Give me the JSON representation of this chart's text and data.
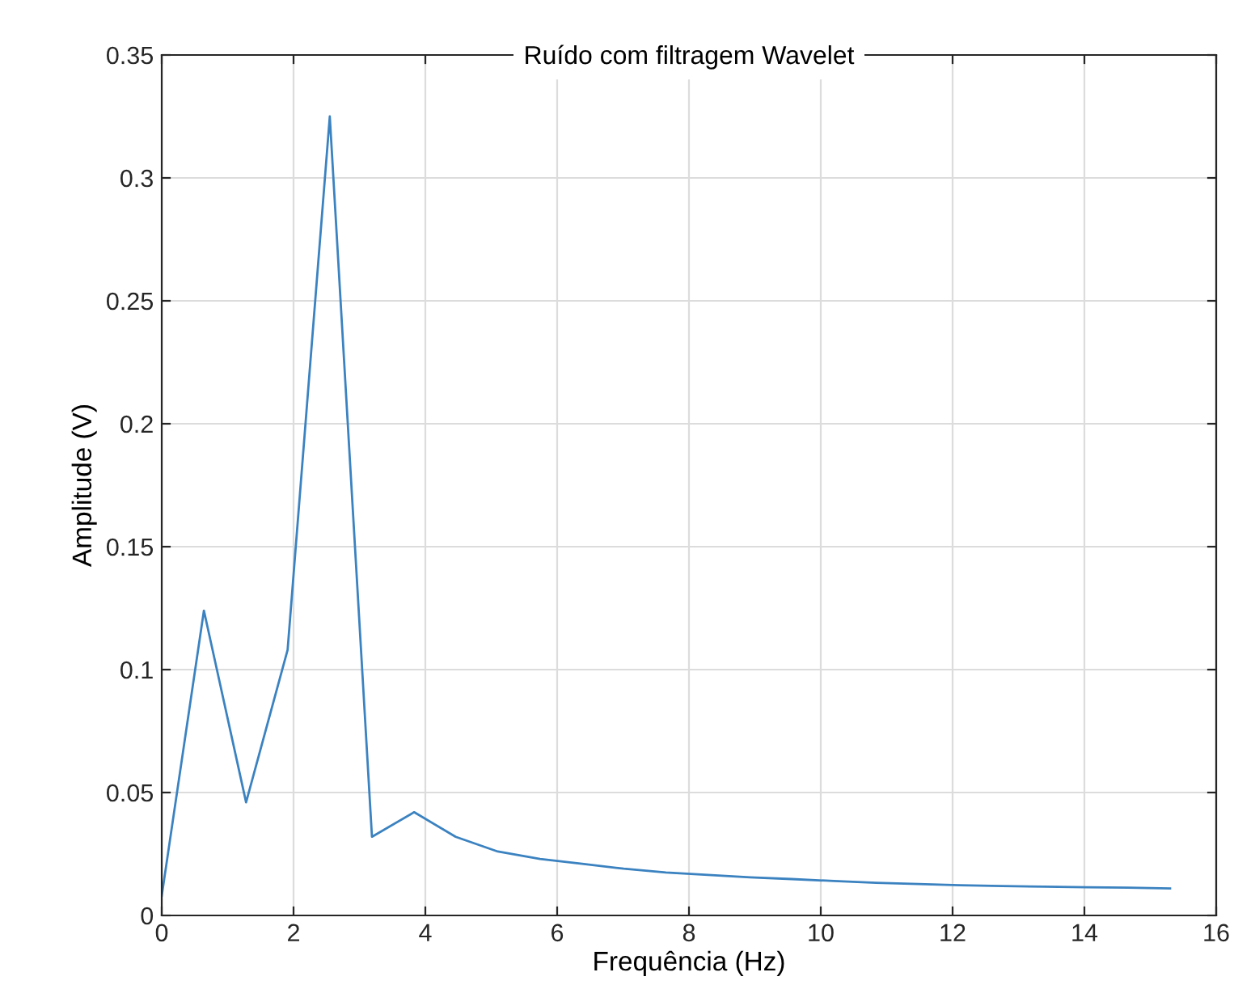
{
  "chart_data": {
    "type": "line",
    "title": "Ruído com filtragem Wavelet",
    "xlabel": "Frequência (Hz)",
    "ylabel": "Amplitude (V)",
    "x": [
      0,
      0.64,
      1.28,
      1.91,
      2.55,
      3.19,
      3.83,
      4.46,
      5.1,
      5.74,
      6.38,
      7.01,
      7.65,
      8.29,
      8.93,
      9.56,
      10.2,
      10.84,
      11.48,
      12.11,
      12.75,
      13.39,
      14.03,
      14.66,
      15.3
    ],
    "series": [
      {
        "color": "#3b82c0",
        "values": [
          0.008,
          0.124,
          0.046,
          0.108,
          0.325,
          0.032,
          0.042,
          0.032,
          0.026,
          0.023,
          0.021,
          0.019,
          0.0175,
          0.0165,
          0.0155,
          0.0148,
          0.014,
          0.0133,
          0.0128,
          0.0123,
          0.012,
          0.0117,
          0.0115,
          0.0113,
          0.011
        ]
      }
    ],
    "xlim": [
      0,
      16
    ],
    "xticks": [
      0,
      2,
      4,
      6,
      8,
      10,
      12,
      14,
      16
    ],
    "ylim": [
      0,
      0.35
    ],
    "yticks": [
      0,
      0.05,
      0.1,
      0.15,
      0.2,
      0.25,
      0.3,
      0.35
    ],
    "grid": true,
    "legend": false,
    "marker": "none",
    "line_style": "solid"
  }
}
